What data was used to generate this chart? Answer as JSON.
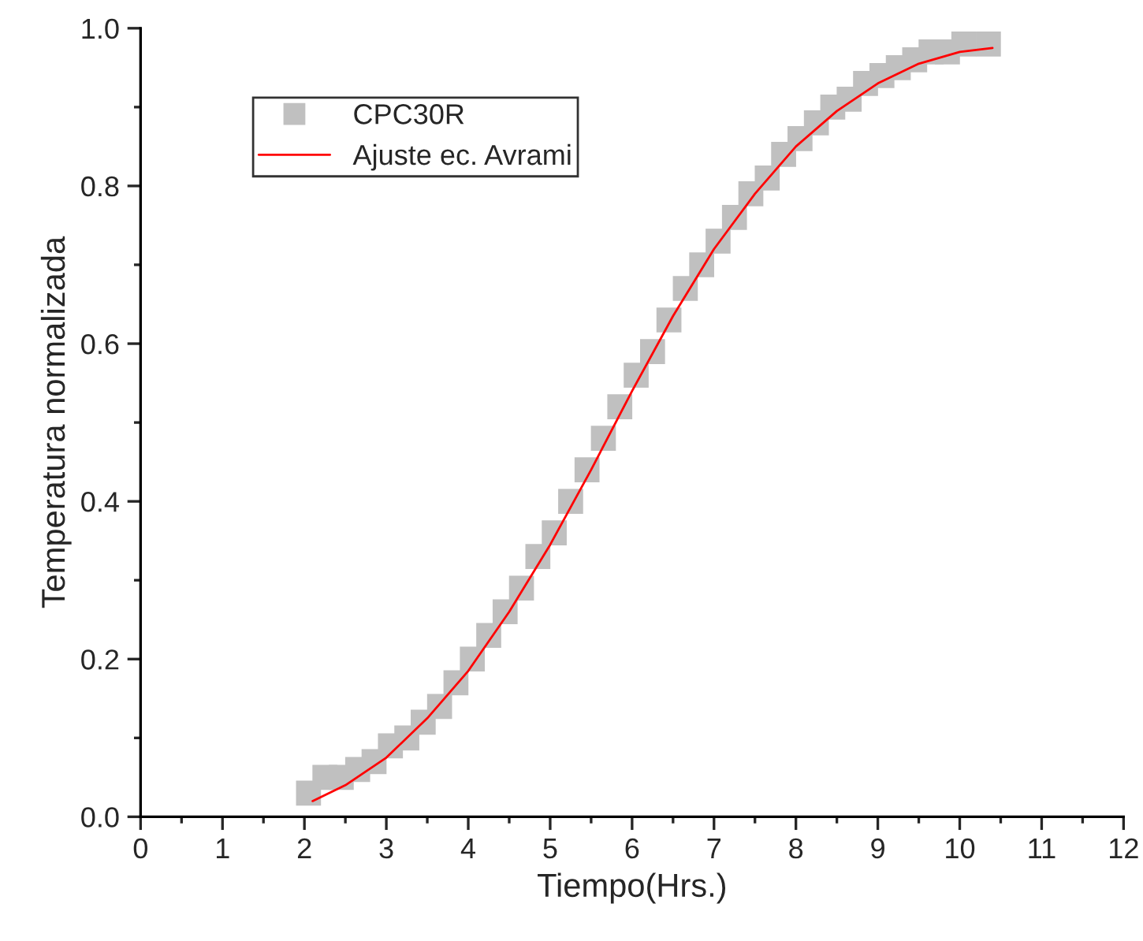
{
  "chart_data": {
    "type": "scatter",
    "xlabel": "Tiempo(Hrs.)",
    "ylabel": "Temperatura normalizada",
    "xlim": [
      0,
      12
    ],
    "xticks": [
      0,
      1,
      2,
      3,
      4,
      5,
      6,
      7,
      8,
      9,
      10,
      11,
      12
    ],
    "ylim": [
      0,
      1
    ],
    "yticks": [
      {
        "value": 0,
        "label": "0.0"
      },
      {
        "value": 0.2,
        "label": "0.2"
      },
      {
        "value": 0.4,
        "label": "0.4"
      },
      {
        "value": 0.6,
        "label": "0.6"
      },
      {
        "value": 0.8,
        "label": "0.8"
      },
      {
        "value": 1,
        "label": "1.0"
      }
    ],
    "legend": "top left",
    "grid": false,
    "marker": "square",
    "series": [
      {
        "name": "CPC30R",
        "color": "#c0c0c0",
        "x": [
          2.05,
          2.25,
          2.45,
          2.65,
          2.85,
          3.05,
          3.25,
          3.45,
          3.65,
          3.85,
          4.05,
          4.25,
          4.45,
          4.65,
          4.85,
          5.05,
          5.25,
          5.45,
          5.65,
          5.85,
          6.05,
          6.25,
          6.45,
          6.65,
          6.85,
          7.05,
          7.25,
          7.45,
          7.65,
          7.85,
          8.05,
          8.25,
          8.45,
          8.65,
          8.85,
          9.05,
          9.25,
          9.45,
          9.65,
          9.85,
          10.05,
          10.35
        ],
        "values": [
          0.03,
          0.05,
          0.05,
          0.06,
          0.07,
          0.09,
          0.1,
          0.12,
          0.14,
          0.17,
          0.2,
          0.23,
          0.26,
          0.29,
          0.33,
          0.36,
          0.4,
          0.44,
          0.48,
          0.52,
          0.56,
          0.59,
          0.63,
          0.67,
          0.7,
          0.73,
          0.76,
          0.79,
          0.81,
          0.84,
          0.86,
          0.88,
          0.9,
          0.91,
          0.93,
          0.94,
          0.95,
          0.96,
          0.97,
          0.97,
          0.98,
          0.98
        ]
      },
      {
        "name": "Ajuste ec. Avrami",
        "type": "line",
        "color": "#ff0000",
        "line_style": "solid",
        "marker": "none",
        "x": [
          2.1,
          2.5,
          3,
          3.5,
          4,
          4.5,
          5,
          5.5,
          6,
          6.5,
          7,
          7.5,
          8,
          8.5,
          9,
          9.5,
          10,
          10.4
        ],
        "values": [
          0.02,
          0.04,
          0.075,
          0.125,
          0.185,
          0.26,
          0.345,
          0.44,
          0.54,
          0.635,
          0.72,
          0.79,
          0.85,
          0.895,
          0.93,
          0.955,
          0.97,
          0.975
        ]
      }
    ]
  }
}
